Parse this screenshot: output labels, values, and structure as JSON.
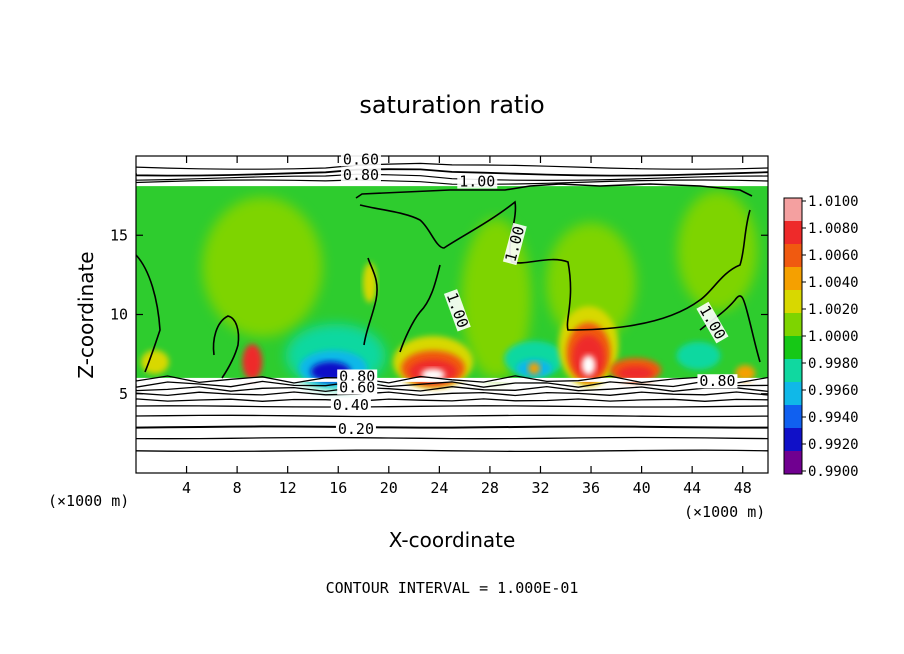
{
  "chart_data": {
    "type": "heatmap",
    "title": "saturation ratio",
    "xlabel": "X-coordinate",
    "ylabel": "Z-coordinate",
    "x_unit_left": "(×1000 m)",
    "x_unit_right": "(×1000 m)",
    "xlim": [
      0,
      50
    ],
    "ylim": [
      0,
      20
    ],
    "x_ticks": [
      "4",
      "8",
      "12",
      "16",
      "20",
      "24",
      "28",
      "32",
      "36",
      "40",
      "44",
      "48"
    ],
    "y_ticks": [
      "5",
      "10",
      "15"
    ],
    "contour_labels": [
      "0.60",
      "0.80",
      "1.00",
      "1.00",
      "1.00",
      "1.00",
      "0.80",
      "0.80",
      "0.60",
      "0.40",
      "0.20"
    ],
    "contour_interval_text": "CONTOUR INTERVAL = 1.000E-01",
    "colorbar": {
      "levels": [
        "1.0100",
        "1.0080",
        "1.0060",
        "1.0040",
        "1.0020",
        "1.0000",
        "0.9980",
        "0.9960",
        "0.9940",
        "0.9920",
        "0.9900"
      ],
      "colors": [
        "#f4a0a0",
        "#ee2a2a",
        "#f05a10",
        "#f5a000",
        "#d8d800",
        "#7ed400",
        "#16c816",
        "#10d8a0",
        "#10b8e8",
        "#1060f0",
        "#1010c8",
        "#700090"
      ]
    },
    "features": [
      {
        "x": 23.5,
        "z": 6.7,
        "value": 1.008,
        "note": "red maximum"
      },
      {
        "x": 36.0,
        "z": 7.5,
        "value": 1.009,
        "note": "red maximum"
      },
      {
        "x": 15.5,
        "z": 6.8,
        "value": 0.992,
        "note": "blue minimum"
      }
    ],
    "grid": false,
    "legend": "right colorbar"
  }
}
